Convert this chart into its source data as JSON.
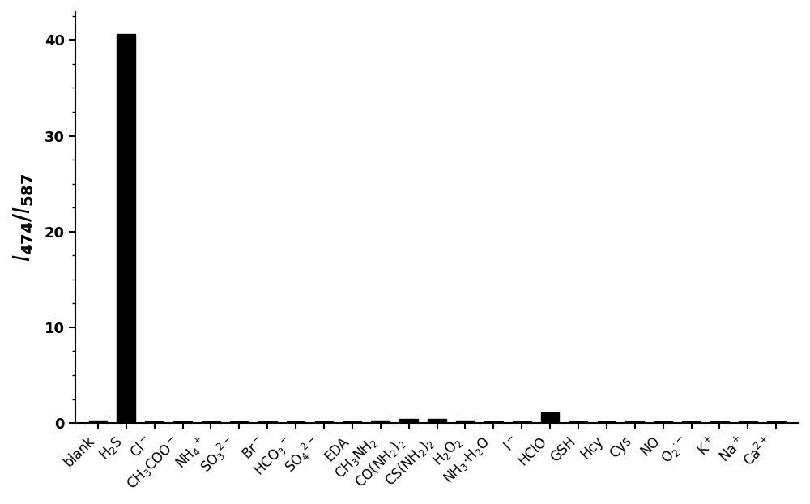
{
  "categories": [
    "blank",
    "H$_2$S",
    "Cl$^-$",
    "CH$_3$COO$^-$",
    "NH$_4$$^+$",
    "SO$_3$$^{2-}$",
    "Br$^-$",
    "HCO$_3$$^-$",
    "SO$_4$$^{2-}$",
    "EDA",
    "CH$_3$NH$_2$",
    "CO(NH$_2$)$_2$",
    "CS(NH$_2$)$_2$",
    "H$_2$O$_2$",
    "NH$_3$$\\cdot$H$_2$O",
    "I$^-$",
    "HClO",
    "GSH",
    "Hcy",
    "Cys",
    "NO",
    "O$_2$$^{\\cdot-}$",
    "K$^+$",
    "Na$^+$",
    "Ca$^{2+}$"
  ],
  "values": [
    0.28,
    40.6,
    0.18,
    0.2,
    0.2,
    0.18,
    0.18,
    0.2,
    0.18,
    0.18,
    0.25,
    0.4,
    0.4,
    0.25,
    0.22,
    0.2,
    1.1,
    0.22,
    0.2,
    0.2,
    0.18,
    0.18,
    0.18,
    0.18,
    0.2
  ],
  "bar_color": "#000000",
  "ylabel": "$\\mathbf{\\mathit{I}}$$_{\\mathbf{474}}$/$\\mathbf{\\mathit{I}}$$_{\\mathbf{587}}$",
  "ylim": [
    0,
    43
  ],
  "yticks": [
    0,
    10,
    20,
    30,
    40
  ],
  "bar_width": 0.65,
  "background_color": "#ffffff",
  "tick_fontsize": 12,
  "ylabel_fontsize": 20,
  "xlabel_rotation": 45
}
